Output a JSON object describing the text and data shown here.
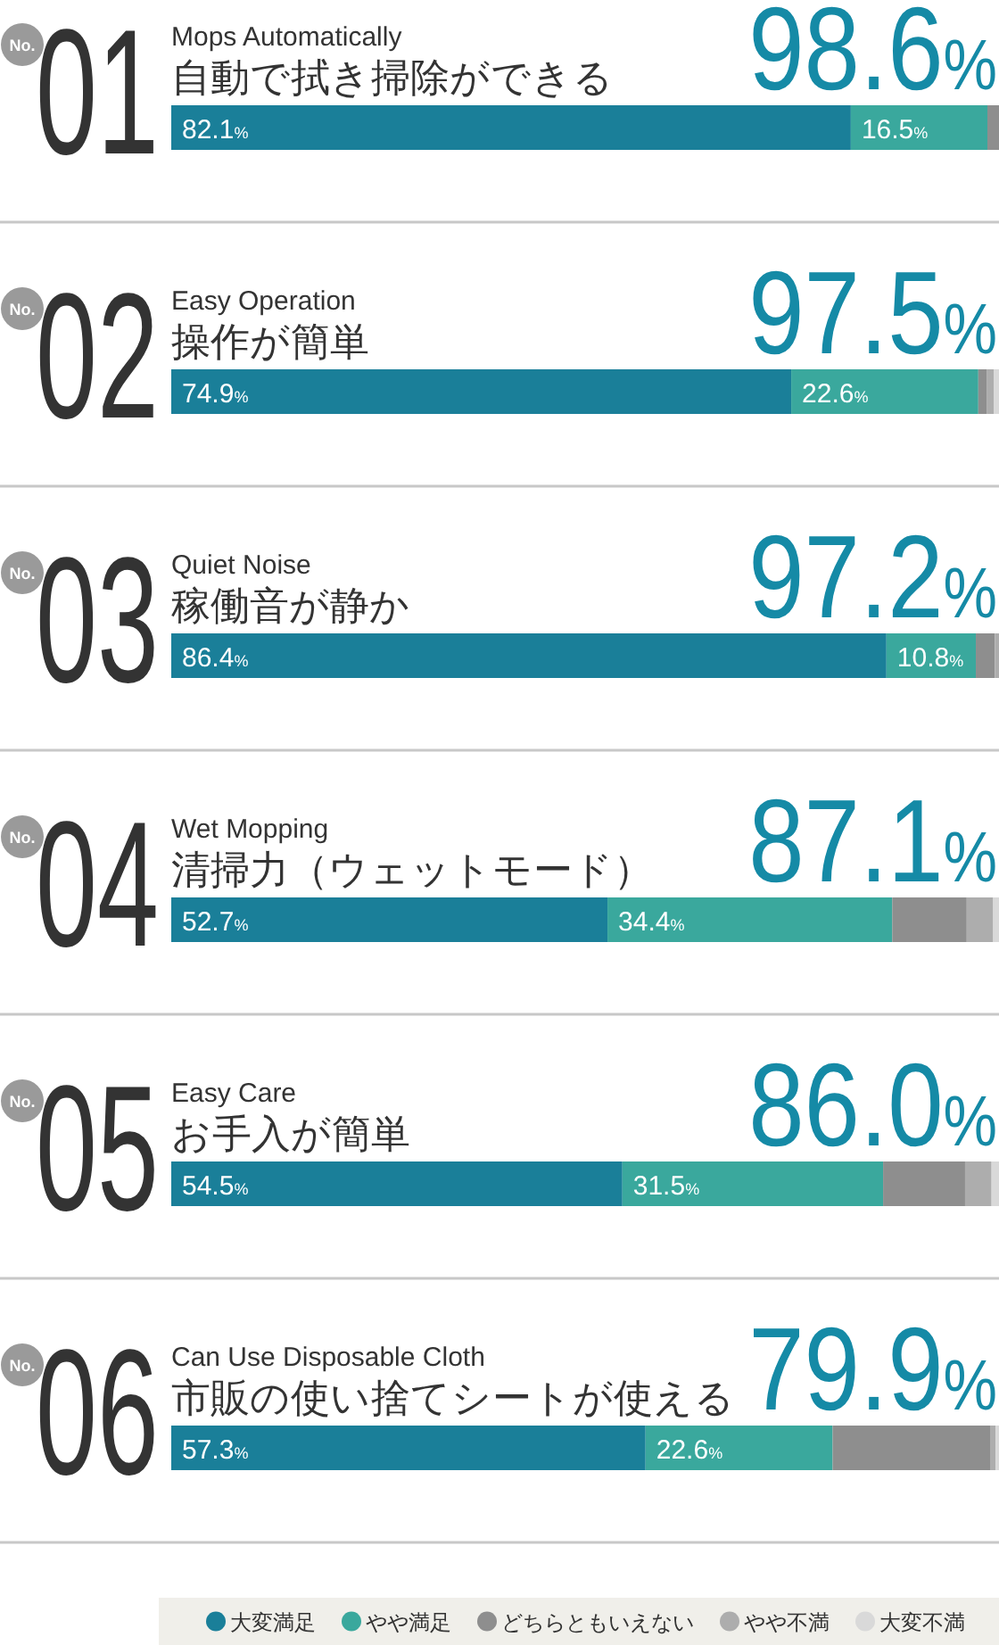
{
  "chart_data": [
    {
      "type": "bar",
      "orientation": "horizontal",
      "stacked": true,
      "title": "Mops Automatically",
      "subtitle": "自動で拭き掃除ができる",
      "annotations": [
        "No.",
        "01",
        "98.6%"
      ],
      "categories": [
        null
      ],
      "xlim": [
        0,
        100
      ],
      "series": [
        {
          "color": "#1a7f99",
          "values": [
            82.1
          ],
          "value_labels": [
            "82.1%"
          ]
        },
        {
          "color": "#3aa89d",
          "values": [
            16.5
          ],
          "value_labels": [
            "16.5%"
          ]
        },
        {
          "color": "#8e8e8e",
          "values": [
            1.4
          ]
        }
      ]
    },
    {
      "type": "bar",
      "orientation": "horizontal",
      "stacked": true,
      "title": "Easy Operation",
      "subtitle": "操作が簡単",
      "annotations": [
        "No.",
        "02",
        "97.5%"
      ],
      "categories": [
        null
      ],
      "xlim": [
        0,
        100
      ],
      "series": [
        {
          "color": "#1a7f99",
          "values": [
            74.9
          ],
          "value_labels": [
            "74.9%"
          ]
        },
        {
          "color": "#3aa89d",
          "values": [
            22.6
          ],
          "value_labels": [
            "22.6%"
          ]
        },
        {
          "color": "#8e8e8e",
          "values": [
            1.0
          ]
        },
        {
          "color": "#adadad",
          "values": [
            0.9
          ]
        },
        {
          "color": "#d9d9d9",
          "values": [
            0.6
          ]
        }
      ]
    },
    {
      "type": "bar",
      "orientation": "horizontal",
      "stacked": true,
      "title": "Quiet Noise",
      "subtitle": "稼働音が静か",
      "annotations": [
        "No.",
        "03",
        "97.2%"
      ],
      "categories": [
        null
      ],
      "xlim": [
        0,
        100
      ],
      "series": [
        {
          "color": "#1a7f99",
          "values": [
            86.4
          ],
          "value_labels": [
            "86.4%"
          ]
        },
        {
          "color": "#3aa89d",
          "values": [
            10.8
          ],
          "value_labels": [
            "10.8%"
          ]
        },
        {
          "color": "#8e8e8e",
          "values": [
            2.3
          ]
        },
        {
          "color": "#adadad",
          "values": [
            0.5
          ]
        }
      ]
    },
    {
      "type": "bar",
      "orientation": "horizontal",
      "stacked": true,
      "title": "Wet Mopping",
      "subtitle": "清掃力（ウェットモード）",
      "annotations": [
        "No.",
        "04",
        "87.1%"
      ],
      "categories": [
        null
      ],
      "xlim": [
        0,
        100
      ],
      "series": [
        {
          "color": "#1a7f99",
          "values": [
            52.7
          ],
          "value_labels": [
            "52.7%"
          ]
        },
        {
          "color": "#3aa89d",
          "values": [
            34.4
          ],
          "value_labels": [
            "34.4%"
          ]
        },
        {
          "color": "#8e8e8e",
          "values": [
            9.0
          ]
        },
        {
          "color": "#adadad",
          "values": [
            3.2
          ]
        },
        {
          "color": "#d9d9d9",
          "values": [
            0.7
          ]
        }
      ]
    },
    {
      "type": "bar",
      "orientation": "horizontal",
      "stacked": true,
      "title": "Easy Care",
      "subtitle": "お手入が簡単",
      "annotations": [
        "No.",
        "05",
        "86.0%"
      ],
      "categories": [
        null
      ],
      "xlim": [
        0,
        100
      ],
      "series": [
        {
          "color": "#1a7f99",
          "values": [
            54.5
          ],
          "value_labels": [
            "54.5%"
          ]
        },
        {
          "color": "#3aa89d",
          "values": [
            31.5
          ],
          "value_labels": [
            "31.5%"
          ]
        },
        {
          "color": "#8e8e8e",
          "values": [
            9.9
          ]
        },
        {
          "color": "#adadad",
          "values": [
            3.2
          ]
        },
        {
          "color": "#d9d9d9",
          "values": [
            0.9
          ]
        }
      ]
    },
    {
      "type": "bar",
      "orientation": "horizontal",
      "stacked": true,
      "title": "Can Use Disposable Cloth",
      "subtitle": "市販の使い捨てシートが使える",
      "annotations": [
        "No.",
        "06",
        "79.9%"
      ],
      "categories": [
        null
      ],
      "xlim": [
        0,
        100
      ],
      "legend": "bottom",
      "series": [
        {
          "name": "大変満足",
          "color": "#1a7f99",
          "values": [
            57.3
          ],
          "value_labels": [
            "57.3%"
          ]
        },
        {
          "name": "やや満足",
          "color": "#3aa89d",
          "values": [
            22.6
          ],
          "value_labels": [
            "22.6%"
          ]
        },
        {
          "name": "どちらともいえない",
          "color": "#8e8e8e",
          "values": [
            19.1
          ]
        },
        {
          "name": "やや不満",
          "color": "#adadad",
          "values": [
            0.6
          ]
        },
        {
          "name": "大変不満",
          "color": "#d9d9d9",
          "values": [
            0.4
          ]
        }
      ]
    }
  ]
}
